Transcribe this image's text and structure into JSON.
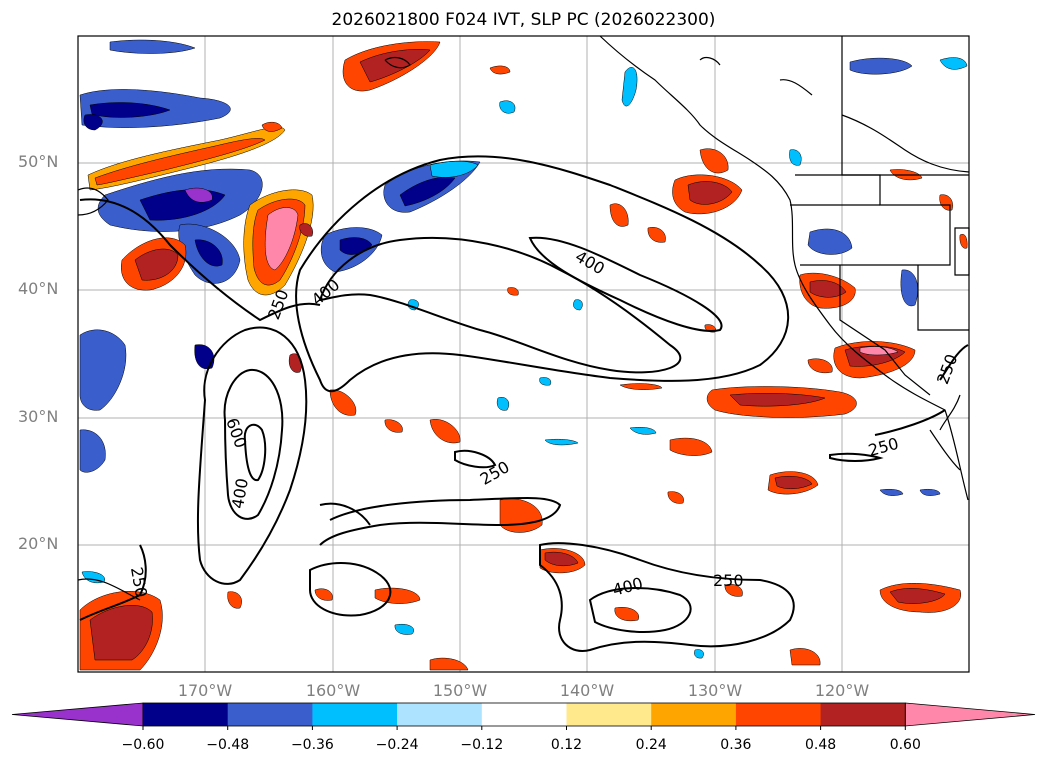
{
  "title": "2026021800 F024 IVT, SLP PC (2026022300)",
  "map": {
    "projection": "PlateCarree",
    "lon_range": [
      -180,
      -110
    ],
    "lat_range": [
      10,
      60
    ],
    "lat_ticks": [
      {
        "value": 50,
        "label": "50°N"
      },
      {
        "value": 40,
        "label": "40°N"
      },
      {
        "value": 30,
        "label": "30°N"
      },
      {
        "value": 20,
        "label": "20°N"
      }
    ],
    "lon_ticks": [
      {
        "value": -170,
        "label": "170°W"
      },
      {
        "value": -160,
        "label": "160°W"
      },
      {
        "value": -150,
        "label": "150°W"
      },
      {
        "value": -140,
        "label": "140°W"
      },
      {
        "value": -130,
        "label": "130°W"
      },
      {
        "value": -120,
        "label": "120°W"
      }
    ],
    "contour_labels": [
      "400",
      "400",
      "250",
      "600",
      "400",
      "250",
      "400",
      "250",
      "250",
      "250",
      "250"
    ]
  },
  "colorbar": {
    "ticks": [
      "−0.60",
      "−0.48",
      "−0.36",
      "−0.24",
      "−0.12",
      "0.12",
      "0.24",
      "0.36",
      "0.48",
      "0.60"
    ],
    "colors": [
      "#9932cc",
      "#00008b",
      "#3a5fcd",
      "#00bfff",
      "#aee3ff",
      "#ffffff",
      "#ffe98c",
      "#ffa500",
      "#ff4500",
      "#b22222",
      "#ff88aa"
    ]
  }
}
